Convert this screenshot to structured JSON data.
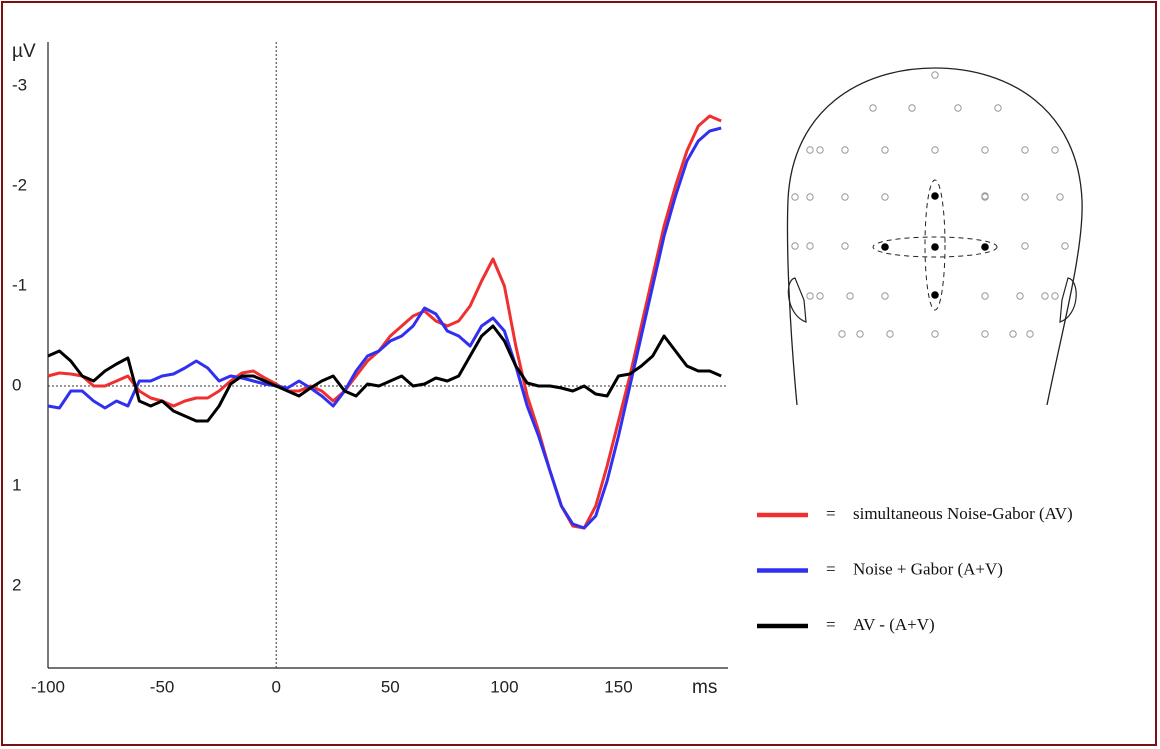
{
  "chart_data": {
    "type": "line",
    "y_label": "µV",
    "x_label": "ms",
    "legend_separator": "=",
    "x": [
      -100,
      -95,
      -90,
      -85,
      -80,
      -75,
      -70,
      -65,
      -60,
      -55,
      -50,
      -45,
      -40,
      -35,
      -30,
      -25,
      -20,
      -15,
      -10,
      -5,
      0,
      5,
      10,
      15,
      20,
      25,
      30,
      35,
      40,
      45,
      50,
      55,
      60,
      65,
      70,
      75,
      80,
      85,
      90,
      95,
      100,
      105,
      110,
      115,
      120,
      125,
      130,
      135,
      140,
      145,
      150,
      155,
      160,
      165,
      170,
      175,
      180,
      185,
      190,
      195
    ],
    "xlim": [
      -100,
      198
    ],
    "xticks": [
      -100,
      -50,
      0,
      50,
      100,
      150
    ],
    "ylim": [
      2.82,
      -3.44
    ],
    "yticks": [
      -3,
      -2,
      -1,
      0,
      1,
      2
    ],
    "series": [
      {
        "name": "simultaneous Noise-Gabor (AV)",
        "color": "#f03030",
        "values": [
          -0.1,
          -0.13,
          -0.12,
          -0.1,
          0,
          0,
          -0.05,
          -0.1,
          0.05,
          0.12,
          0.15,
          0.2,
          0.15,
          0.12,
          0.12,
          0.05,
          -0.05,
          -0.13,
          -0.15,
          -0.08,
          -0.02,
          0.05,
          0.05,
          0,
          0.05,
          0.15,
          0.05,
          -0.1,
          -0.25,
          -0.35,
          -0.5,
          -0.6,
          -0.7,
          -0.75,
          -0.65,
          -0.6,
          -0.65,
          -0.8,
          -1.05,
          -1.27,
          -1.0,
          -0.4,
          0.1,
          0.45,
          0.85,
          1.2,
          1.4,
          1.42,
          1.2,
          0.8,
          0.35,
          -0.1,
          -0.6,
          -1.1,
          -1.6,
          -2.0,
          -2.35,
          -2.6,
          -2.7,
          -2.65
        ]
      },
      {
        "name": "Noise + Gabor (A+V)",
        "color": "#3030f0",
        "values": [
          0.2,
          0.22,
          0.05,
          0.05,
          0.15,
          0.22,
          0.15,
          0.2,
          -0.05,
          -0.05,
          -0.1,
          -0.12,
          -0.18,
          -0.25,
          -0.18,
          -0.05,
          -0.1,
          -0.08,
          -0.05,
          -0.02,
          0,
          0.02,
          -0.05,
          0.02,
          0.1,
          0.2,
          0.05,
          -0.15,
          -0.3,
          -0.35,
          -0.45,
          -0.5,
          -0.6,
          -0.78,
          -0.72,
          -0.55,
          -0.5,
          -0.4,
          -0.6,
          -0.68,
          -0.55,
          -0.2,
          0.2,
          0.5,
          0.85,
          1.2,
          1.38,
          1.42,
          1.3,
          0.95,
          0.5,
          0,
          -0.5,
          -1.0,
          -1.5,
          -1.9,
          -2.25,
          -2.45,
          -2.55,
          -2.58
        ]
      },
      {
        "name": "AV - (A+V)",
        "color": "#000000",
        "values": [
          -0.3,
          -0.35,
          -0.25,
          -0.1,
          -0.05,
          -0.15,
          -0.22,
          -0.28,
          0.15,
          0.2,
          0.15,
          0.25,
          0.3,
          0.35,
          0.35,
          0.2,
          -0.02,
          -0.1,
          -0.1,
          -0.05,
          0,
          0.05,
          0.1,
          0.02,
          -0.05,
          -0.1,
          0.05,
          0.1,
          -0.02,
          0,
          -0.05,
          -0.1,
          0,
          -0.02,
          -0.08,
          -0.05,
          -0.1,
          -0.3,
          -0.5,
          -0.6,
          -0.45,
          -0.2,
          -0.03,
          0,
          0,
          0.02,
          0.05,
          0,
          0.08,
          0.1,
          -0.1,
          -0.12,
          -0.2,
          -0.3,
          -0.5,
          -0.35,
          -0.2,
          -0.15,
          -0.15,
          -0.1
        ]
      }
    ]
  }
}
